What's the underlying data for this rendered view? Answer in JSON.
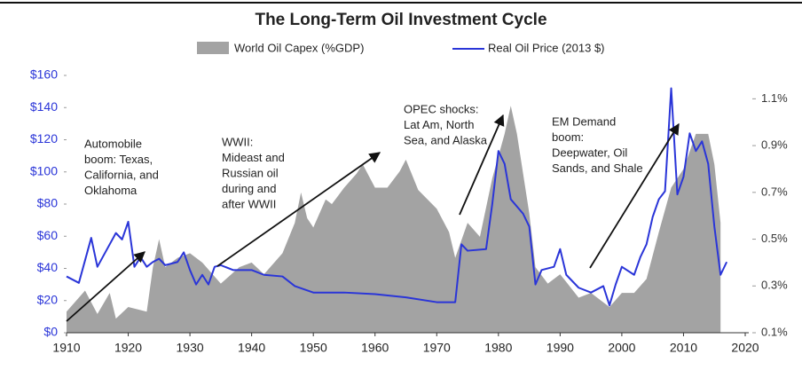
{
  "chart_data": {
    "type": "area-line",
    "title": "The Long-Term Oil Investment Cycle",
    "xlim": [
      1910,
      2020
    ],
    "xticks": [
      1910,
      1920,
      1930,
      1940,
      1950,
      1960,
      1970,
      1980,
      1990,
      2000,
      2010,
      2020
    ],
    "ylim": [
      0,
      160
    ],
    "yticks": [
      {
        "value": 0,
        "label": "$0"
      },
      {
        "value": 20,
        "label": "$20"
      },
      {
        "value": 40,
        "label": "$40"
      },
      {
        "value": 60,
        "label": "$60"
      },
      {
        "value": 80,
        "label": "$80"
      },
      {
        "value": 100,
        "label": "$100"
      },
      {
        "value": 120,
        "label": "$120"
      },
      {
        "value": 140,
        "label": "$140"
      },
      {
        "value": 160,
        "label": "$160"
      }
    ],
    "y2lim": [
      0.1,
      1.2
    ],
    "y2ticks": [
      {
        "value": 0.1,
        "label": "0.1%"
      },
      {
        "value": 0.3,
        "label": "0.3%"
      },
      {
        "value": 0.5,
        "label": "0.5%"
      },
      {
        "value": 0.7,
        "label": "0.7%"
      },
      {
        "value": 0.9,
        "label": "0.9%"
      },
      {
        "value": 1.1,
        "label": "1.1%"
      }
    ],
    "series": [
      {
        "name": "World Oil Capex (%GDP)",
        "color": "#a3a3a3",
        "axis": "y2",
        "kind": "area",
        "x": [
          1910,
          1913,
          1915,
          1917,
          1918,
          1920,
          1923,
          1924,
          1925,
          1926,
          1928,
          1930,
          1932,
          1935,
          1938,
          1940,
          1942,
          1945,
          1947,
          1948,
          1949,
          1950,
          1952,
          1953,
          1955,
          1957,
          1958,
          1960,
          1962,
          1964,
          1965,
          1967,
          1970,
          1972,
          1973,
          1975,
          1977,
          1979,
          1981,
          1982,
          1983,
          1985,
          1986,
          1988,
          1990,
          1993,
          1995,
          1998,
          2000,
          2002,
          2004,
          2006,
          2008,
          2010,
          2012,
          2014,
          2015,
          2016
        ],
        "values": [
          0.19,
          0.28,
          0.18,
          0.27,
          0.16,
          0.21,
          0.19,
          0.38,
          0.5,
          0.38,
          0.42,
          0.44,
          0.4,
          0.31,
          0.38,
          0.4,
          0.35,
          0.44,
          0.57,
          0.7,
          0.59,
          0.55,
          0.67,
          0.65,
          0.72,
          0.78,
          0.82,
          0.72,
          0.72,
          0.79,
          0.84,
          0.71,
          0.63,
          0.53,
          0.42,
          0.57,
          0.51,
          0.76,
          0.95,
          1.07,
          0.95,
          0.61,
          0.38,
          0.31,
          0.35,
          0.25,
          0.27,
          0.21,
          0.27,
          0.27,
          0.33,
          0.53,
          0.72,
          0.8,
          0.95,
          0.95,
          0.82,
          0.57
        ]
      },
      {
        "name": "Real Oil Price (2013 $)",
        "color": "#2a35d8",
        "axis": "y",
        "kind": "line",
        "x": [
          1910,
          1912,
          1914,
          1915,
          1917,
          1918,
          1919,
          1920,
          1921,
          1922,
          1923,
          1924,
          1925,
          1926,
          1928,
          1929,
          1930,
          1931,
          1932,
          1933,
          1934,
          1935,
          1937,
          1940,
          1942,
          1945,
          1947,
          1950,
          1955,
          1960,
          1965,
          1970,
          1973,
          1974,
          1975,
          1978,
          1979,
          1980,
          1981,
          1982,
          1984,
          1985,
          1986,
          1987,
          1989,
          1990,
          1991,
          1993,
          1995,
          1997,
          1998,
          1999,
          2000,
          2002,
          2003,
          2004,
          2005,
          2006,
          2007,
          2008,
          2009,
          2010,
          2011,
          2012,
          2013,
          2014,
          2015,
          2016,
          2017
        ],
        "values": [
          35,
          31,
          59,
          41,
          55,
          62,
          58,
          69,
          41,
          47,
          41,
          44,
          46,
          42,
          44,
          50,
          39,
          30,
          36,
          30,
          41,
          42,
          39,
          39,
          36,
          35,
          29,
          25,
          25,
          24,
          22,
          19,
          19,
          55,
          51,
          52,
          80,
          113,
          105,
          83,
          74,
          66,
          30,
          39,
          41,
          52,
          36,
          28,
          25,
          29,
          17,
          30,
          41,
          36,
          47,
          55,
          72,
          83,
          88,
          152,
          86,
          97,
          124,
          113,
          119,
          105,
          66,
          36,
          44
        ]
      }
    ],
    "annotations": [
      [
        "Automobile",
        "boom: Texas,",
        "California, and",
        "Oklahoma"
      ],
      [
        "WWII:",
        "Mideast and",
        "Russian oil",
        "during and",
        "after WWII"
      ],
      [
        "OPEC shocks:",
        "Lat Am, North",
        "Sea, and Alaska"
      ],
      [
        "EM Demand",
        "boom:",
        "Deepwater, Oil",
        "Sands, and Shale"
      ]
    ]
  }
}
